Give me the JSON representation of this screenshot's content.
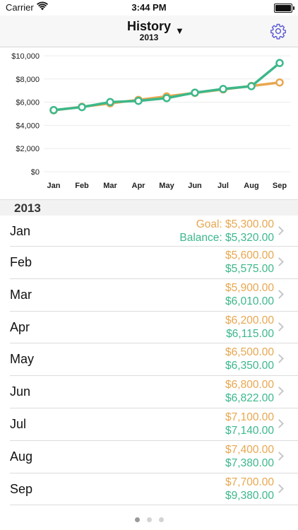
{
  "status": {
    "carrier": "Carrier",
    "time": "3:44 PM"
  },
  "nav": {
    "title": "History",
    "subtitle": "2013",
    "dropdown": "▼"
  },
  "colors": {
    "goal": "#e8a750",
    "balance": "#3cb88a",
    "accent": "#5856d6"
  },
  "chart_data": {
    "type": "line",
    "categories": [
      "Jan",
      "Feb",
      "Mar",
      "Apr",
      "May",
      "Jun",
      "Jul",
      "Aug",
      "Sep"
    ],
    "ylim": [
      0,
      10000
    ],
    "yticks": [
      "$0",
      "$2,000",
      "$4,000",
      "$6,000",
      "$8,000",
      "$10,000"
    ],
    "series": [
      {
        "values": [
          5300,
          5600,
          5900,
          6200,
          6500,
          6800,
          7100,
          7400,
          7700
        ],
        "color": "#e8a750"
      },
      {
        "values": [
          5320,
          5575,
          6010,
          6115,
          6350,
          6822,
          7140,
          7380,
          9380
        ],
        "color": "#3cb88a"
      }
    ],
    "grid": true
  },
  "section": {
    "title": "2013"
  },
  "rows": [
    {
      "month": "Jan",
      "goal": "Goal: $5,300.00",
      "balance": "Balance: $5,320.00"
    },
    {
      "month": "Feb",
      "goal": "$5,600.00",
      "balance": "$5,575.00"
    },
    {
      "month": "Mar",
      "goal": "$5,900.00",
      "balance": "$6,010.00"
    },
    {
      "month": "Apr",
      "goal": "$6,200.00",
      "balance": "$6,115.00"
    },
    {
      "month": "May",
      "goal": "$6,500.00",
      "balance": "$6,350.00"
    },
    {
      "month": "Jun",
      "goal": "$6,800.00",
      "balance": "$6,822.00"
    },
    {
      "month": "Jul",
      "goal": "$7,100.00",
      "balance": "$7,140.00"
    },
    {
      "month": "Aug",
      "goal": "$7,400.00",
      "balance": "$7,380.00"
    },
    {
      "month": "Sep",
      "goal": "$7,700.00",
      "balance": "$9,380.00"
    }
  ],
  "pager": {
    "count": 3,
    "active": 0
  }
}
